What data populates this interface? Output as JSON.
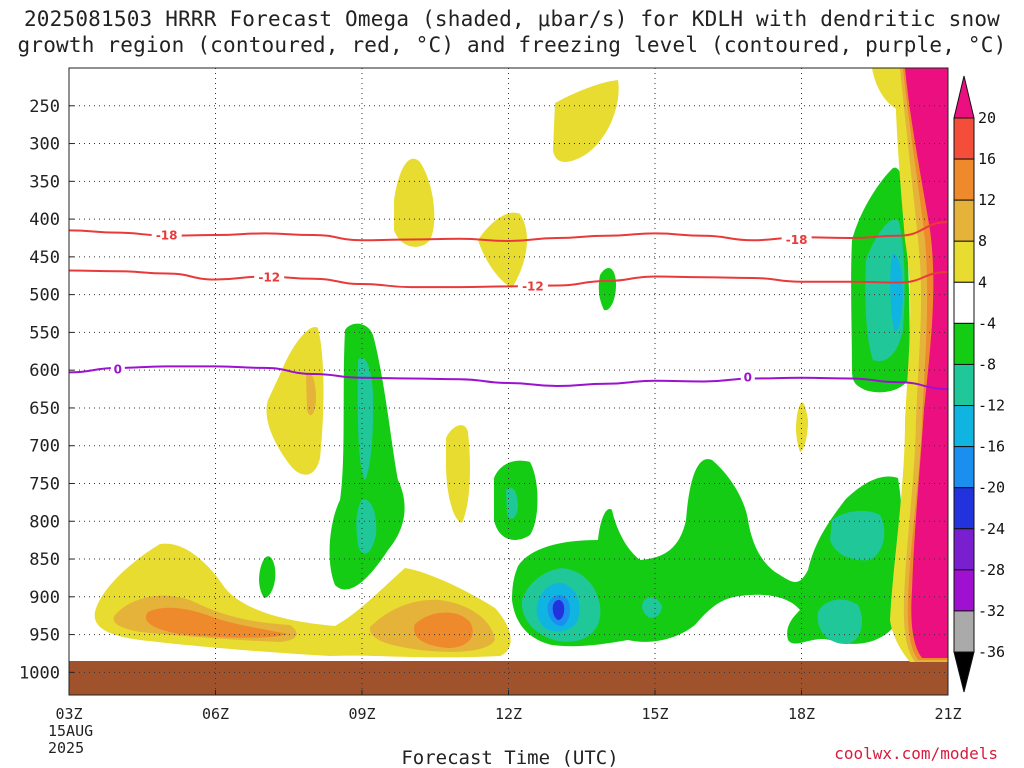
{
  "title": {
    "line1": "2025081503 HRRR Forecast Omega (shaded, μbar/s) for KDLH with dendritic snow",
    "line2": "growth region (contoured, red, °C) and freezing level (contoured, purple, °C)"
  },
  "credit": "coolwx.com/models",
  "chart_data": {
    "type": "heatmap",
    "xlabel": "Forecast Time (UTC)",
    "ylabel": "",
    "x_ticks": [
      "03Z",
      "06Z",
      "09Z",
      "12Z",
      "15Z",
      "18Z",
      "21Z"
    ],
    "x_hours": [
      3,
      6,
      9,
      12,
      15,
      18,
      21
    ],
    "x_date_label": [
      "15AUG",
      "2025"
    ],
    "xlim": [
      3,
      21
    ],
    "y_ticks": [
      250,
      300,
      350,
      400,
      450,
      500,
      550,
      600,
      650,
      700,
      750,
      800,
      850,
      900,
      950,
      1000
    ],
    "ylim": [
      200,
      1030
    ],
    "y_reversed": true,
    "grid": true,
    "surface_color": "#a0522d",
    "colorbar": {
      "levels": [
        20,
        16,
        12,
        8,
        4,
        -4,
        -8,
        -12,
        -16,
        -20,
        -24,
        -28,
        -32,
        -36
      ],
      "colors": [
        "#ec0f80",
        "#f44d3a",
        "#ee8a2c",
        "#e6b33a",
        "#e8dc30",
        "#ffffff",
        "#14cc14",
        "#1fc799",
        "#10b4e0",
        "#1a8ff0",
        "#2233dd",
        "#7a1fcf",
        "#a010d0",
        "#aaaaaa",
        "#000000"
      ]
    },
    "contours": [
      {
        "name": "-18",
        "color": "#e83a3a",
        "type": "dendritic",
        "points": [
          [
            3,
            415
          ],
          [
            4,
            418
          ],
          [
            5,
            422
          ],
          [
            6,
            421
          ],
          [
            7,
            419
          ],
          [
            8,
            421
          ],
          [
            9,
            428
          ],
          [
            10,
            427
          ],
          [
            11,
            426
          ],
          [
            12,
            429
          ],
          [
            13,
            425
          ],
          [
            14,
            422
          ],
          [
            15,
            419
          ],
          [
            16,
            422
          ],
          [
            17,
            428
          ],
          [
            18,
            424
          ],
          [
            19,
            425
          ],
          [
            20,
            422
          ],
          [
            21,
            404
          ]
        ],
        "labels": [
          [
            5.0,
            422
          ],
          [
            17.9,
            428
          ]
        ]
      },
      {
        "name": "-12",
        "color": "#e83a3a",
        "type": "dendritic",
        "points": [
          [
            3,
            468
          ],
          [
            4,
            469
          ],
          [
            5,
            472
          ],
          [
            6,
            480
          ],
          [
            7,
            476
          ],
          [
            8,
            479
          ],
          [
            9,
            486
          ],
          [
            10,
            490
          ],
          [
            11,
            490
          ],
          [
            12,
            489
          ],
          [
            13,
            488
          ],
          [
            14,
            482
          ],
          [
            15,
            476
          ],
          [
            16,
            477
          ],
          [
            17,
            478
          ],
          [
            18,
            483
          ],
          [
            19,
            483
          ],
          [
            20,
            484
          ],
          [
            21,
            470
          ]
        ],
        "labels": [
          [
            7.1,
            477
          ],
          [
            12.5,
            489
          ]
        ]
      },
      {
        "name": "0",
        "color": "#9b13cf",
        "type": "freezing",
        "points": [
          [
            3,
            603
          ],
          [
            4,
            597
          ],
          [
            5,
            595
          ],
          [
            6,
            595
          ],
          [
            7,
            597
          ],
          [
            8,
            605
          ],
          [
            9,
            610
          ],
          [
            10,
            611
          ],
          [
            11,
            612
          ],
          [
            12,
            617
          ],
          [
            13,
            621
          ],
          [
            14,
            618
          ],
          [
            15,
            614
          ],
          [
            16,
            615
          ],
          [
            17,
            611
          ],
          [
            18,
            610
          ],
          [
            19,
            611
          ],
          [
            20,
            616
          ],
          [
            21,
            625
          ]
        ],
        "labels": [
          [
            4.0,
            599
          ],
          [
            16.9,
            610
          ]
        ]
      }
    ]
  }
}
